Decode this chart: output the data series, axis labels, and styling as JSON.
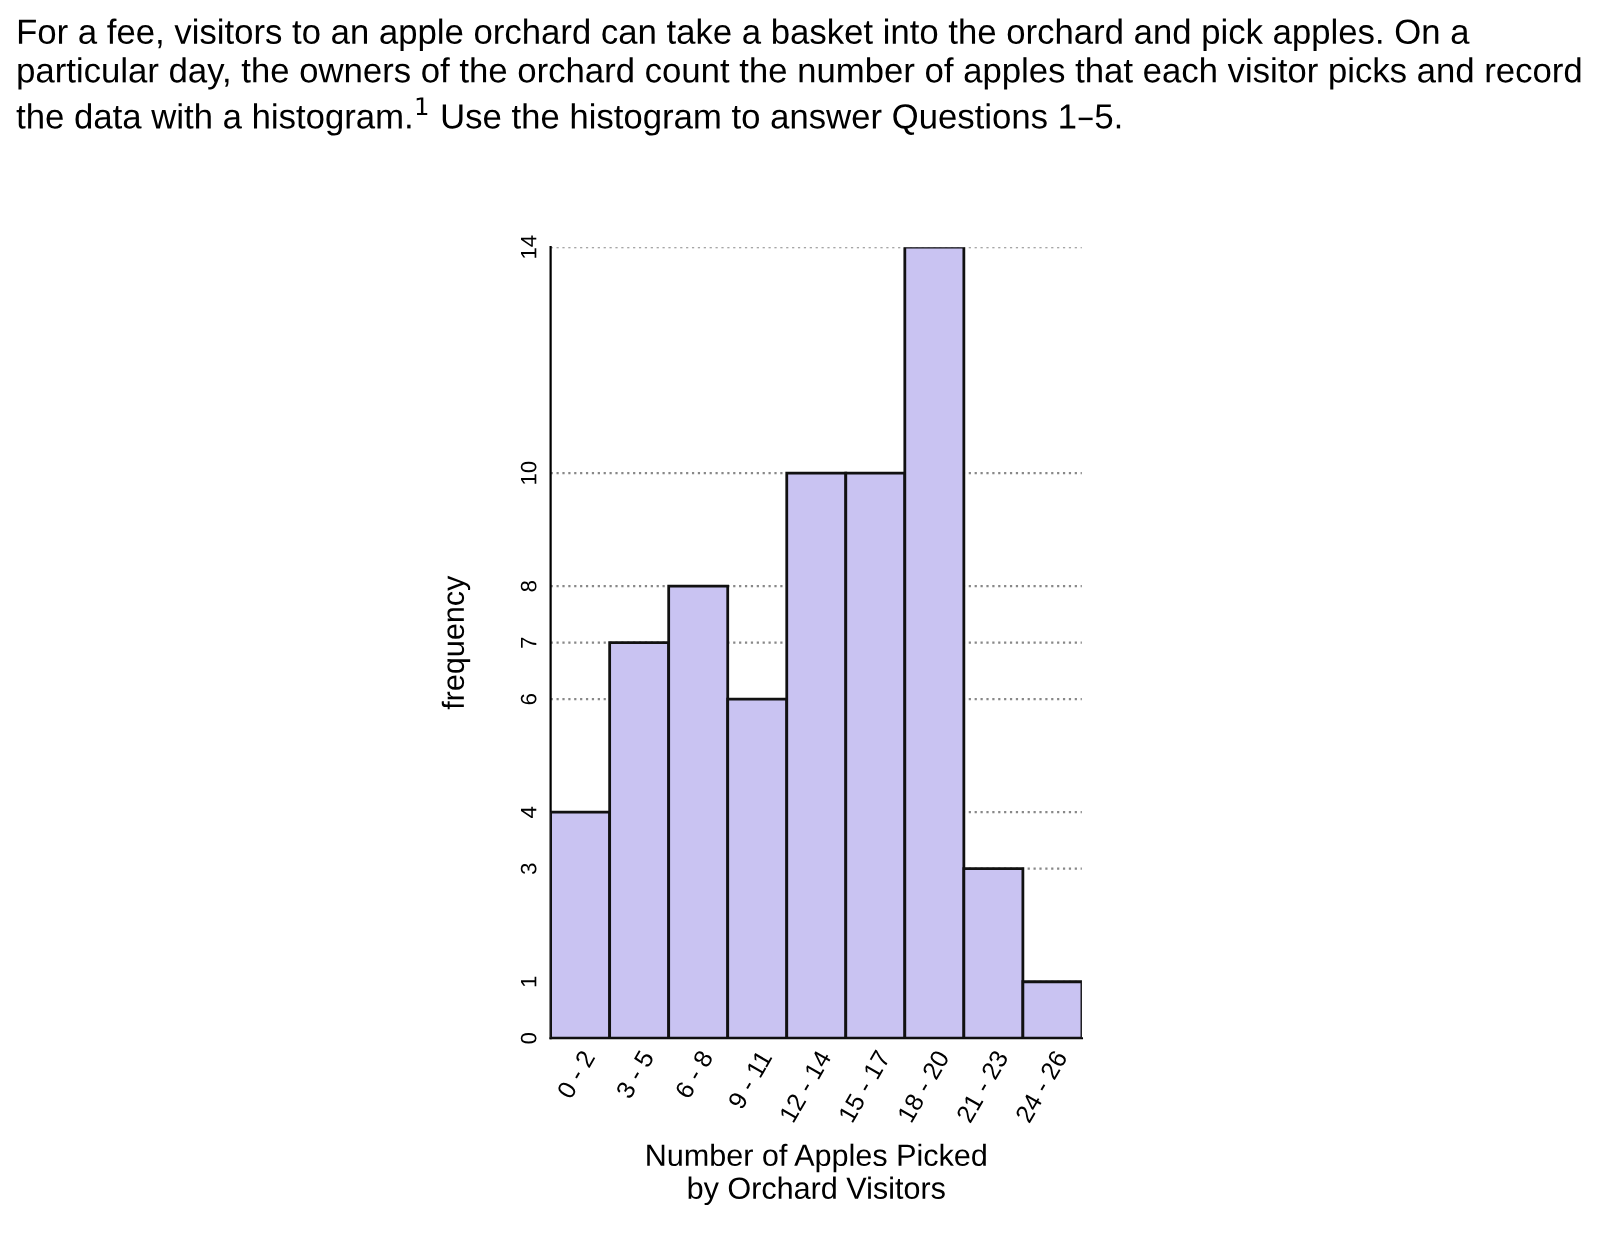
{
  "chart_data": {
    "type": "bar",
    "title": "For a fee, visitors to an apple orchard can take a basket into the orchard and pick apples. On a particular day, the owners of the orchard count the number of apples that each visitor picks and record the data with a histogram.$^{1}$ Use the histogram to answer Questions 1–5.",
    "xlabel": "Number of Apples Picked\nby Orchard Visitors",
    "ylabel": "frequency",
    "categories": [
      "0 - 2",
      "3 - 5",
      "6 - 8",
      "9 - 11",
      "12 - 14",
      "15 - 17",
      "18 - 20",
      "21 - 23",
      "24 - 26"
    ],
    "values": [
      4,
      7,
      8,
      6,
      10,
      10,
      14,
      3,
      1
    ],
    "color": "#c9c3f2",
    "ylim": [
      0,
      14
    ],
    "yticks": [
      0,
      1,
      3,
      4,
      6,
      7,
      8,
      10,
      14
    ],
    "grid": "y"
  }
}
